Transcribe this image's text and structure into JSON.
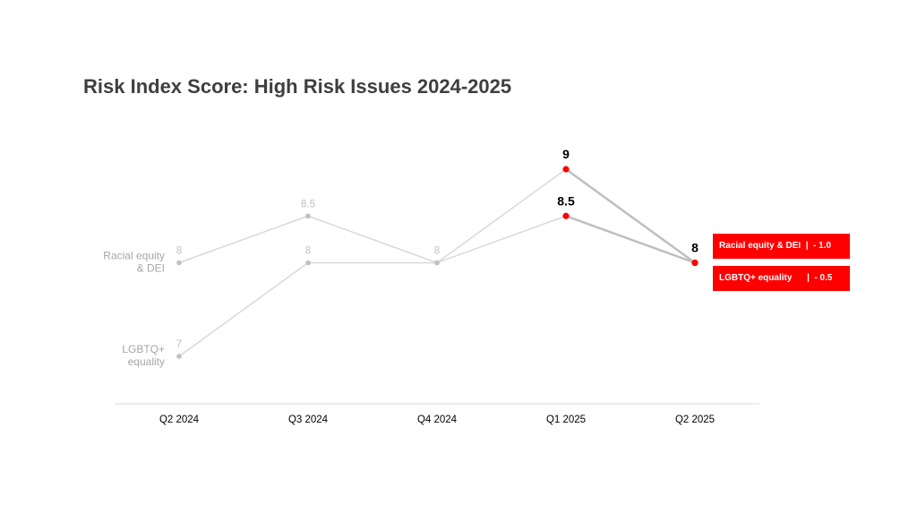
{
  "title": "Risk Index Score: High Risk Issues 2024-2025",
  "colors": {
    "highlight": "#ff0000",
    "muted_line": "#d9d9d9",
    "muted_marker": "#bfbfbf",
    "axis": "#d9d9d9",
    "title": "#3f3f3f"
  },
  "badges": [
    "Racial equity & DEI  |  - 1.0",
    "LGBTQ+ equality      |  - 0.5"
  ],
  "chart_data": {
    "type": "line",
    "categories": [
      "Q2 2024",
      "Q3 2024",
      "Q4 2024",
      "Q1 2025",
      "Q2 2025"
    ],
    "series": [
      {
        "name": "Racial equity & DEI",
        "values": [
          8,
          8.5,
          8,
          9,
          8
        ],
        "data_labels": [
          "8",
          "8.5",
          "8",
          "9",
          "8"
        ]
      },
      {
        "name": "LGBTQ+ equality",
        "values": [
          7,
          8,
          8,
          8.5,
          8
        ],
        "data_labels": [
          "7",
          "8",
          "",
          "8.5",
          ""
        ]
      }
    ],
    "highlighted_points": [
      "Q1 2025",
      "Q2 2025"
    ],
    "xlabel": "",
    "ylabel": "",
    "ylim": [
      7,
      9
    ],
    "grid": false,
    "legend": "none"
  }
}
